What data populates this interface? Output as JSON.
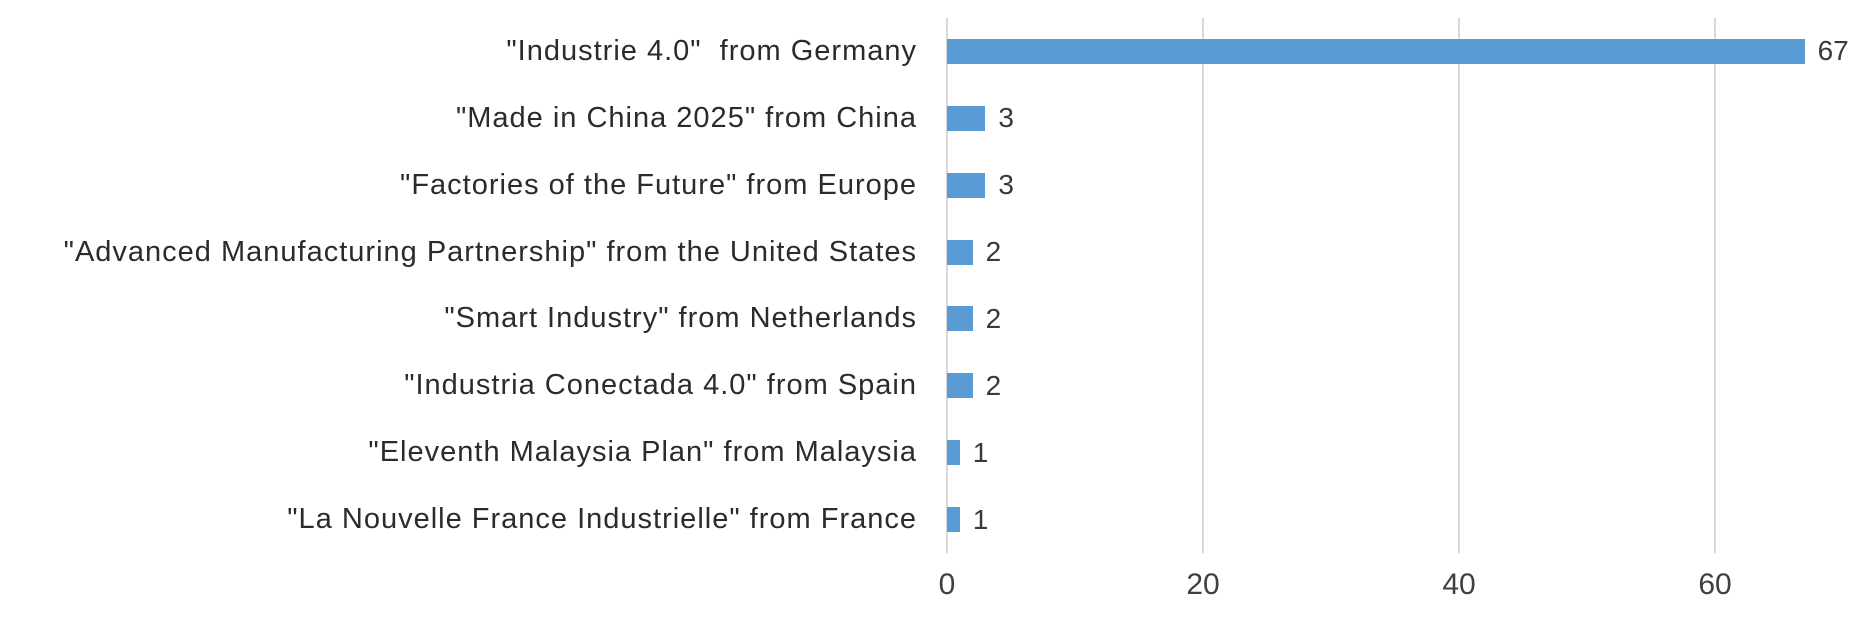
{
  "chart_data": {
    "type": "bar",
    "orientation": "horizontal",
    "title": "",
    "xlabel": "",
    "ylabel": "",
    "categories": [
      "\"Industrie 4.0\"  from Germany",
      "\"Made in China 2025\" from China",
      "\"Factories of the Future\" from Europe",
      "\"Advanced Manufacturing Partnership\" from the United States",
      "\"Smart Industry\" from Netherlands",
      "\"Industria Conectada 4.0\" from Spain",
      "\"Eleventh Malaysia Plan\" from Malaysia",
      "\"La Nouvelle France Industrielle\" from France"
    ],
    "values": [
      67,
      3,
      3,
      2,
      2,
      2,
      1,
      1
    ],
    "value_labels": [
      "67",
      "3",
      "3",
      "2",
      "2",
      "2",
      "1",
      "1"
    ],
    "x_ticks": [
      "0",
      "20",
      "40",
      "60"
    ],
    "x_tick_values": [
      0,
      20,
      40,
      60
    ],
    "xlim": [
      0,
      72.5
    ],
    "grid": "vertical-gridlines-only",
    "legend_position": "none",
    "data_labels": "outside-end",
    "colors": {
      "bar": "#5b9bd5",
      "gridline": "#d9d9d9",
      "category_text": "#2b2b2b",
      "value_text": "#3a3a3a",
      "tick_text": "#404040",
      "background": "#ffffff"
    }
  }
}
